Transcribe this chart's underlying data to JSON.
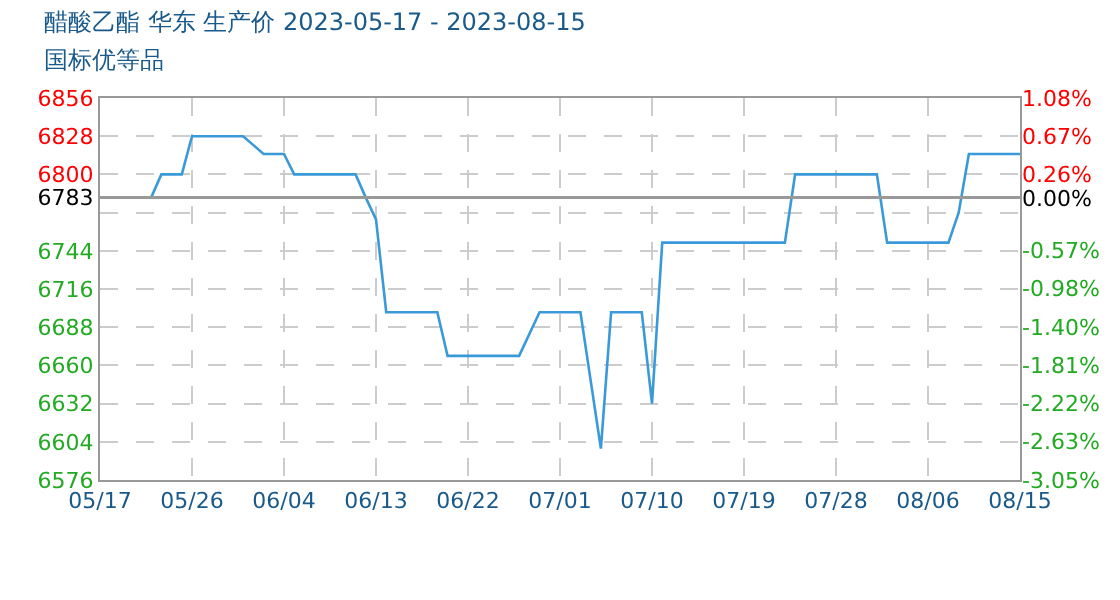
{
  "chart_data": {
    "type": "line",
    "title": "醋酸乙酯 华东 生产价 2023-05-17 - 2023-08-15",
    "subtitle": "国标优等品",
    "x": [
      "2023-05-17",
      "2023-05-22",
      "2023-05-23",
      "2023-05-25",
      "2023-05-26",
      "2023-05-31",
      "2023-06-02",
      "2023-06-04",
      "2023-06-05",
      "2023-06-11",
      "2023-06-12",
      "2023-06-13",
      "2023-06-14",
      "2023-06-19",
      "2023-06-20",
      "2023-06-27",
      "2023-06-29",
      "2023-07-03",
      "2023-07-05",
      "2023-07-06",
      "2023-07-09",
      "2023-07-10",
      "2023-07-11",
      "2023-07-23",
      "2023-07-24",
      "2023-08-01",
      "2023-08-02",
      "2023-08-08",
      "2023-08-09",
      "2023-08-10",
      "2023-08-15"
    ],
    "series": [
      {
        "color": "#3a9ad9",
        "values": [
          6783,
          6783,
          6800,
          6800,
          6828,
          6828,
          6815,
          6815,
          6800,
          6800,
          6783,
          6767,
          6699,
          6699,
          6667,
          6667,
          6699,
          6699,
          6599,
          6699,
          6699,
          6632,
          6750,
          6750,
          6800,
          6800,
          6750,
          6750,
          6772,
          6815,
          6815
        ]
      }
    ],
    "xlim": [
      "2023-05-17",
      "2023-08-15"
    ],
    "xticks": [
      {
        "value": "2023-05-17",
        "label": "05/17"
      },
      {
        "value": "2023-05-26",
        "label": "05/26"
      },
      {
        "value": "2023-06-04",
        "label": "06/04"
      },
      {
        "value": "2023-06-13",
        "label": "06/13"
      },
      {
        "value": "2023-06-22",
        "label": "06/22"
      },
      {
        "value": "2023-07-01",
        "label": "07/01"
      },
      {
        "value": "2023-07-10",
        "label": "07/10"
      },
      {
        "value": "2023-07-19",
        "label": "07/19"
      },
      {
        "value": "2023-07-28",
        "label": "07/28"
      },
      {
        "value": "2023-08-06",
        "label": "08/06"
      },
      {
        "value": "2023-08-15",
        "label": "08/15"
      }
    ],
    "ylim": [
      6576,
      6856
    ],
    "yticks": [
      6576,
      6604,
      6632,
      6660,
      6688,
      6716,
      6744,
      {
        "value": 6772,
        "label": null
      },
      6783,
      6800,
      6828,
      6856
    ],
    "y2lim": [
      -3.05,
      1.08
    ],
    "y2ticks": [
      {
        "value": -3.05,
        "label": "-3.05%"
      },
      {
        "value": -2.63,
        "label": "-2.63%"
      },
      {
        "value": -2.22,
        "label": "-2.22%"
      },
      {
        "value": -1.81,
        "label": "-1.81%"
      },
      {
        "value": -1.4,
        "label": "-1.40%"
      },
      {
        "value": -0.98,
        "label": "-0.98%"
      },
      {
        "value": -0.57,
        "label": "-0.57%"
      },
      {
        "value": 0,
        "label": "0.00%"
      },
      {
        "value": 0.26,
        "label": "0.26%"
      },
      {
        "value": 0.67,
        "label": "0.67%"
      },
      {
        "value": 1.08,
        "label": "1.08%"
      }
    ],
    "ref_lines": [
      {
        "axis": "y",
        "value": 6783,
        "color": "#999999"
      }
    ],
    "grid": true,
    "line_style": "solid",
    "marker": "none"
  }
}
